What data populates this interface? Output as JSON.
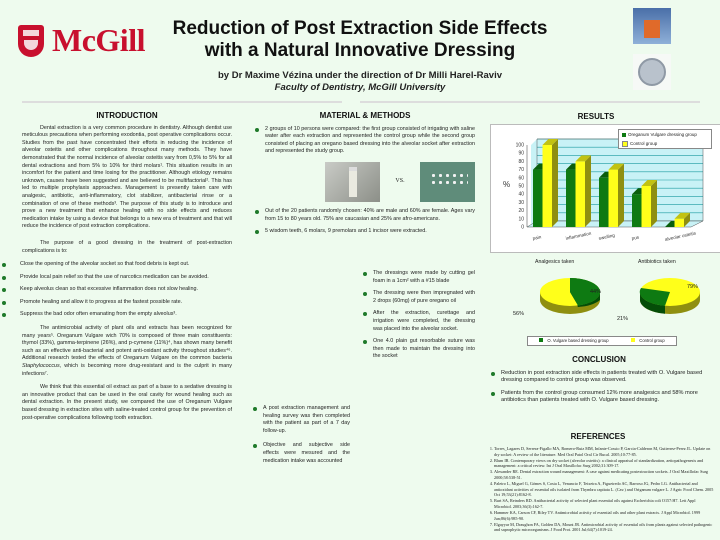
{
  "header": {
    "logo_text": "McGill",
    "title_line1": "Reduction of Post Extraction Side Effects",
    "title_line2": "with a Natural Innovative Dressing",
    "byline": "by Dr Maxime Vézina under the direction of Dr Milli Harel-Raviv",
    "faculty": "Faculty of Dentistry, McGill University"
  },
  "introduction": {
    "heading": "INTRODUCTION",
    "p1": "Dental extraction is a very common procedure in dentistry. Although dentist use meticulous precautions when performing exodontia, post operative complications occur. Studies from the past have concentrated their efforts in reducing the incidence of alveolar osteitis and other complications throughout many methods. They have demonstrated that the normal incidence of alveolar osteitis vary from 0,5% to 5% for all dental extractions and from 5% to 10% for third molars¹. This situation results in an incomfort for the patient and time losing for the practitioner. Although etiology remains unknown, causes have been suggested and are believed to be multifactorial². This has led to multiple prophylaxis approaches. Management is presently taken care with analgesic, antibiotic, anti-inflammatory, clot stabilizer, antibacterial rinse or a combination of one of these methods³. The purpose of this study is to introduce and prove a new treatment that enhance healing with no side effects and reduces medication intake by using a device that belongs to a new era of treatment and that will reduce the incidence of post extraction complications.",
    "p2": "The purpose of a good dressing in the treatment of post-extraction complications is to:",
    "bullets": [
      "Close the opening of the alveolar socket so that food debris is kept out.",
      "Provide local pain relief so that the use of narcotics medication can be avoided.",
      "Keep alveolus clean so that excessive inflammation does not slow healing.",
      "Promote healing and allow it to progress at the fastest possible rate.",
      "Suppress the bad odor often emanating from the empty alveolus³."
    ],
    "p3_before_italic": "The antimicrobial activity of plant oils and extracts has been recognized for many years⁵. Oreganum Vulgare wich 70% is composed of three main constituents: thymol (33%), gamma-terpinene (26%), and p-cymene (11%)⁴, has shown many benefit such as an effective anti-bacterial and potent anti-oxidant activity throughout studies⁴⁶. Additional research tested the effects of Oreganum Vulgare on the common bacteria ",
    "p3_italic": "Staphylococcus",
    "p3_after_italic": ", which is becoming more drug-resistant and is the culprit in many infections⁷.",
    "p4": "We think that this essential oil extract as part of a base to a sedative dressing is an innovative product that can be used in the oral cavity for wound healing such as dental extraction. In the present study, we compared the use of Oreganum Vulgare based dressing in extraction sites with saline-treated control group for the prevention of post-operative complications following tooth extraction."
  },
  "methods": {
    "heading": "MATERIAL & METHODS",
    "bullets_top": [
      "2 groups of 10 persons were compared: the first group consisted of irrigating with saline water after each extraction and represented the control group while the second group consisted of placing an oregano based dressing into the alveolar socket after extraction and represented the study group."
    ],
    "vs_label": "VS.",
    "bullets_mid": [
      "Out of the 20 patients randomly chosen: 40% are male and 60% are female. Ages vary from 15 to 80 years old. 75% are caucasian and 25% are afro-americans.",
      "5 wisdom teeth, 6 molars, 9 premolars and 1 incisor were extracted."
    ],
    "bullets_right": [
      "The dressings were made by cutting gel foam in a 1cm² with a #15 blade",
      "The dressing were then impregnated with 2 drops (60mg) of pure oregano oil",
      "After the extraction, curettage and irrigation were completed, the dressing was placed into the alveolar socket.",
      "One 4.0 plain gut resorbable suture was then made to maintain the dressing into the socket"
    ],
    "bullets_bottom": [
      "A post extraction management and healing survey was then completed with the patient as part of a 7 day follow-up.",
      "Objective and subjective side effects were mesured and the medication intake was accounted"
    ]
  },
  "results": {
    "heading": "RESULTS",
    "colors": {
      "study": "#0e7a12",
      "control": "#ffff1a",
      "plot_bg": "#c8f2f6",
      "grid": "#1a9aa0"
    }
  },
  "chart_data": [
    {
      "type": "bar",
      "title": "",
      "ylabel": "%",
      "xlabel": "",
      "ylim": [
        0,
        100
      ],
      "yticks": [
        0,
        10,
        20,
        30,
        40,
        50,
        60,
        70,
        80,
        90,
        100
      ],
      "grid": true,
      "legend_position": "top-right",
      "categories": [
        "pain",
        "inflammation",
        "swelling",
        "pus",
        "alveolar osteitis"
      ],
      "series": [
        {
          "name": "Oreganum Vulgare dressing group",
          "values": [
            70,
            70,
            60,
            40,
            0
          ]
        },
        {
          "name": "Control group",
          "values": [
            100,
            80,
            70,
            50,
            10
          ]
        }
      ]
    },
    {
      "type": "pie",
      "title": "Analgesics taken",
      "labels": [
        "O. Vulgare based dressing group",
        "Control group"
      ],
      "values": [
        44,
        56
      ]
    },
    {
      "type": "pie",
      "title": "Antibiotics taken",
      "labels": [
        "O. Vulgare based dressing group",
        "Control group"
      ],
      "values": [
        21,
        79
      ]
    }
  ],
  "pie_legend": {
    "study": "O. Vulgare based dressing group",
    "control": "Control group"
  },
  "pie_labels": {
    "a_study": "44%",
    "a_control": "56%",
    "b_study": "21%",
    "b_control": "79%"
  },
  "conclusion": {
    "heading": "CONCLUSION",
    "bullets": [
      "Reduction in post extraction side effects in patients treated with O. Vulgare based dressing compared to control group was observed.",
      "Patients from the control group consumed 12% more analgesics and 58% more antibiotics than patients treated with O. Vulgare based dressing."
    ]
  },
  "references": {
    "heading": "REFERENCES",
    "items": [
      "Torres_Lagares D, Serrera-Figallo MA, Romero-Ruiz MM, Infante-Cossio P, Garcia-Calderon M, Gutierrez-Perez JL. Update on dry socket: A review of the literature. Med Oral Patol Oral Cir Bucal. 2005;10:77-85.",
      "Blum IR. Contemporary views on dry socket (alveolar osteitis): a clinical appraisal of standardization, aetiopathogenesis and management: a critical review. Int J Oral Maxillofac Surg 2002;31:309-17.",
      "Alexander RE. Dental extraction wound management: A case against medicating postextraction sockets. J Oral Maxillofac Surg 2000;58:538-51.",
      "Paleiro L, Miguel G, Gómes S, Costa L, Venancio F, Teixeira A, Figueiredo AC, Barroso JG, Pedro LG. Antibacterial and antioxidant activities of essential oils isolated from Thymbra capitata L. (Cav.) and Origanum vulgare L. J Agric Food Chem. 2005 Oct 19;53(21):8162-8.",
      "Burt SA, Reinders RD. Antibacterial activity of selected plant essential oils against Escherichia coli O157:H7. Lett Appl Microbiol. 2003;36(3):162-7.",
      "Hammer KA, Carson CF, Riley TV. Antimicrobial activity of essential oils and other plant extracts. J Appl Microbiol. 1999 Jun;86(6):985-90.",
      "Elgayyar M, Draughon FA, Golden DA, Mount JR. Antimicrobial activity of essential oils from plants against selected pathogenic and saprophytic microorganisms. J Food Prot. 2001 Jul;64(7):1019-24."
    ]
  }
}
